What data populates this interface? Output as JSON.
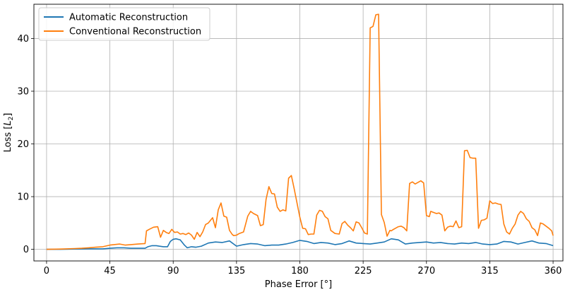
{
  "chart_data": {
    "type": "line",
    "title": "",
    "xlabel": "Phase Error [°]",
    "ylabel_main": "Loss [",
    "ylabel_sym": "L",
    "ylabel_sub": "2",
    "ylabel_end": "]",
    "xlim": [
      -9,
      367
    ],
    "ylim": [
      -2.2,
      46.5
    ],
    "xticks": [
      0,
      45,
      90,
      135,
      180,
      225,
      270,
      315,
      360
    ],
    "yticks": [
      0,
      10,
      20,
      30,
      40
    ],
    "grid": true,
    "legend_position": "top-left",
    "series": [
      {
        "name": "Automatic Reconstruction",
        "color": "#1f77b4",
        "x": [
          0,
          10,
          20,
          30,
          40,
          45,
          50,
          55,
          60,
          65,
          70,
          72,
          75,
          78,
          80,
          83,
          86,
          88,
          90,
          92,
          95,
          98,
          100,
          103,
          106,
          110,
          115,
          120,
          125,
          130,
          135,
          140,
          145,
          150,
          155,
          160,
          165,
          170,
          175,
          180,
          185,
          190,
          195,
          200,
          205,
          210,
          215,
          220,
          225,
          230,
          235,
          240,
          245,
          250,
          255,
          260,
          265,
          270,
          275,
          280,
          285,
          290,
          295,
          300,
          305,
          310,
          315,
          320,
          325,
          330,
          335,
          340,
          345,
          350,
          355,
          360
        ],
        "y": [
          0.0,
          0.0,
          0.05,
          0.1,
          0.1,
          0.2,
          0.3,
          0.3,
          0.2,
          0.2,
          0.2,
          0.5,
          0.7,
          0.7,
          0.6,
          0.5,
          0.5,
          1.5,
          1.9,
          2.0,
          1.8,
          0.8,
          0.3,
          0.5,
          0.4,
          0.6,
          1.2,
          1.4,
          1.3,
          1.6,
          0.6,
          0.9,
          1.1,
          1.0,
          0.7,
          0.8,
          0.8,
          1.0,
          1.3,
          1.7,
          1.5,
          1.1,
          1.3,
          1.2,
          0.9,
          1.1,
          1.6,
          1.2,
          1.1,
          1.0,
          1.2,
          1.4,
          2.0,
          1.8,
          1.0,
          1.2,
          1.3,
          1.4,
          1.2,
          1.3,
          1.1,
          1.0,
          1.2,
          1.1,
          1.3,
          1.0,
          0.9,
          1.0,
          1.5,
          1.4,
          1.0,
          1.3,
          1.6,
          1.2,
          1.1,
          0.7
        ]
      },
      {
        "name": "Conventional Reconstruction",
        "color": "#ff7f0e",
        "x": [
          0,
          10,
          20,
          25,
          30,
          35,
          40,
          45,
          48,
          52,
          56,
          60,
          65,
          70,
          71,
          73,
          76,
          79,
          81,
          83,
          85,
          87,
          89,
          91,
          93,
          95,
          97,
          99,
          101,
          103,
          105,
          107,
          109,
          111,
          113,
          115,
          118,
          120,
          122,
          124,
          126,
          128,
          130,
          132,
          133,
          135,
          137,
          140,
          143,
          145,
          147,
          150,
          152,
          154,
          156,
          158,
          160,
          162,
          164,
          166,
          168,
          170,
          172,
          174,
          176,
          178,
          180,
          182,
          184,
          186,
          188,
          190,
          192,
          194,
          196,
          198,
          200,
          202,
          205,
          208,
          210,
          212,
          214,
          216,
          218,
          220,
          222,
          224,
          226,
          228,
          230,
          232,
          234,
          236,
          238,
          240,
          242,
          244,
          245,
          246,
          248,
          250,
          252,
          254,
          255,
          256,
          258,
          260,
          262,
          264,
          266,
          268,
          270,
          272,
          273,
          275,
          277,
          279,
          281,
          283,
          285,
          287,
          289,
          291,
          293,
          295,
          297,
          299,
          301,
          303,
          305,
          307,
          309,
          311,
          313,
          315,
          317,
          319,
          321,
          323,
          325,
          327,
          329,
          331,
          333,
          335,
          337,
          339,
          341,
          343,
          345,
          347,
          349,
          351,
          353,
          355,
          357,
          359,
          360
        ],
        "y": [
          0.0,
          0.05,
          0.15,
          0.2,
          0.3,
          0.4,
          0.5,
          0.8,
          0.9,
          1.0,
          0.8,
          0.9,
          1.0,
          1.1,
          3.5,
          3.8,
          4.2,
          4.3,
          2.3,
          3.6,
          3.2,
          3.0,
          3.8,
          3.2,
          3.3,
          2.9,
          3.0,
          2.8,
          3.1,
          2.7,
          1.9,
          3.2,
          2.4,
          3.3,
          4.7,
          5.0,
          6.0,
          4.1,
          7.5,
          8.8,
          6.3,
          6.1,
          3.6,
          2.8,
          2.6,
          2.7,
          3.0,
          3.3,
          6.3,
          7.2,
          6.8,
          6.4,
          4.5,
          4.7,
          9.5,
          11.9,
          10.6,
          10.5,
          8.0,
          7.2,
          7.5,
          7.3,
          13.5,
          14.0,
          11.5,
          8.8,
          6.1,
          4.0,
          3.9,
          2.8,
          2.9,
          2.9,
          6.5,
          7.4,
          7.2,
          6.2,
          5.8,
          3.6,
          3.0,
          2.9,
          4.9,
          5.3,
          4.6,
          4.1,
          3.5,
          5.2,
          5.0,
          4.1,
          3.1,
          2.9,
          42.0,
          42.3,
          44.5,
          44.6,
          6.6,
          5.1,
          2.5,
          3.6,
          3.5,
          3.7,
          4.0,
          4.3,
          4.4,
          4.1,
          3.8,
          3.5,
          12.5,
          12.8,
          12.4,
          12.7,
          13.0,
          12.6,
          6.4,
          6.2,
          7.2,
          7.0,
          6.8,
          6.9,
          6.5,
          3.5,
          4.2,
          4.4,
          4.3,
          5.4,
          4.1,
          4.3,
          18.7,
          18.8,
          17.4,
          17.3,
          17.3,
          4.0,
          5.5,
          5.6,
          5.9,
          9.2,
          8.7,
          8.8,
          8.6,
          8.5,
          4.8,
          3.3,
          2.9,
          4.0,
          4.8,
          6.5,
          7.2,
          6.8,
          5.8,
          5.3,
          4.1,
          3.7,
          2.6,
          5.0,
          4.8,
          4.4,
          4.0,
          3.5,
          2.6
        ]
      }
    ]
  }
}
